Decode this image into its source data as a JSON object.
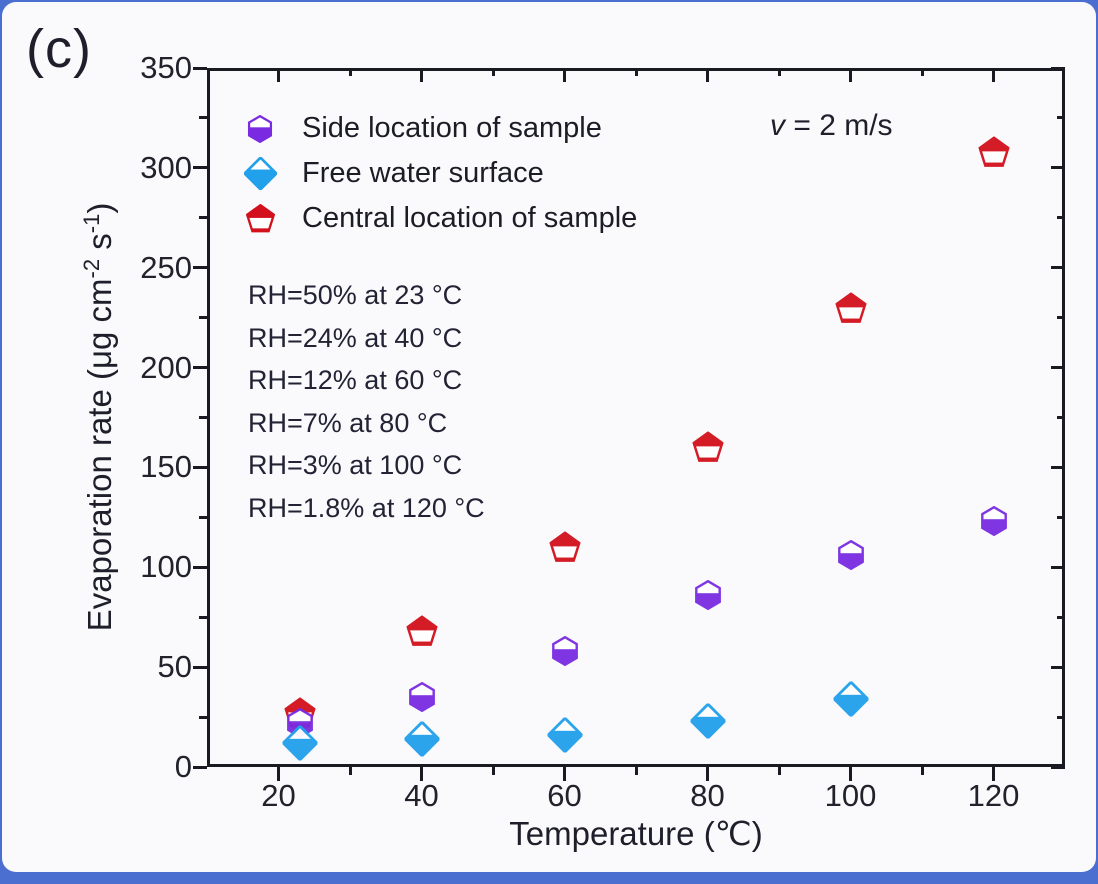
{
  "panel_label": "(c)",
  "colors": {
    "frame_blue": "#4b6fd1",
    "panel_bg": "#fafafc",
    "axis": "#1a1a22",
    "side_purple": "#7a2be2",
    "free_blue": "#21a0ec",
    "central_red": "#d2111c"
  },
  "legend": {
    "items": [
      {
        "label": "Side location of sample",
        "marker": "half-filled-hexagon",
        "color": "#7a2be2"
      },
      {
        "label": "Free water surface",
        "marker": "half-filled-diamond",
        "color": "#21a0ec"
      },
      {
        "label": "Central location of sample",
        "marker": "half-filled-pentagon",
        "color": "#d2111c"
      }
    ]
  },
  "annotations": {
    "velocity": {
      "var": "v",
      "rest": " = 2 m/s"
    },
    "rh_lines": [
      "RH=50% at 23 °C",
      "RH=24% at 40 °C",
      "RH=12% at 60 °C",
      "RH=7% at 80 °C",
      "RH=3% at 100 °C",
      "RH=1.8% at 120 °C"
    ]
  },
  "axes": {
    "x": {
      "label": "Temperature (℃)",
      "ticks": [
        20,
        40,
        60,
        80,
        100,
        120
      ],
      "minor_ticks": [
        30,
        50,
        70,
        90,
        110,
        130
      ],
      "range": [
        10,
        130
      ]
    },
    "y": {
      "label_parts": [
        {
          "t": "Evaporation rate (μg cm"
        },
        {
          "t": "-2",
          "sup": true
        },
        {
          "t": " s"
        },
        {
          "t": "-1",
          "sup": true
        },
        {
          "t": ")"
        }
      ],
      "ticks": [
        0,
        50,
        100,
        150,
        200,
        250,
        300,
        350
      ],
      "minor_ticks": [
        25,
        75,
        125,
        175,
        225,
        275,
        325
      ],
      "range": [
        0,
        350
      ]
    }
  },
  "chart_data": {
    "type": "scatter",
    "title": "",
    "xlabel": "Temperature (℃)",
    "ylabel": "Evaporation rate (μg cm-2 s-1)",
    "xlim": [
      10,
      130
    ],
    "ylim": [
      0,
      350
    ],
    "grid": false,
    "legend_position": "top-left-inside",
    "annotation": "v = 2 m/s",
    "series": [
      {
        "name": "Side location of sample",
        "marker": "hexagon",
        "color": "#7a2be2",
        "x": [
          23,
          40,
          60,
          80,
          100,
          120
        ],
        "y": [
          22,
          35,
          58,
          86,
          106,
          123
        ]
      },
      {
        "name": "Free water surface",
        "marker": "diamond",
        "color": "#21a0ec",
        "x": [
          23,
          40,
          60,
          80,
          100
        ],
        "y": [
          12,
          14,
          16,
          23,
          34
        ]
      },
      {
        "name": "Central location of sample",
        "marker": "pentagon",
        "color": "#d2111c",
        "x": [
          23,
          40,
          60,
          80,
          100,
          120
        ],
        "y": [
          27,
          68,
          110,
          160,
          230,
          308
        ]
      }
    ]
  }
}
